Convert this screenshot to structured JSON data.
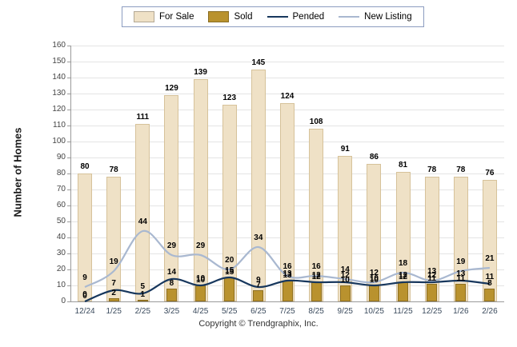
{
  "footer": "Copyright © Trendgraphix, Inc.",
  "chart_data": {
    "type": "bar",
    "subtype": "combo bar + line",
    "title": "",
    "ylabel": "Number of Homes",
    "xlabel": "",
    "ylim": [
      0,
      160
    ],
    "ytick_step": 10,
    "grid": true,
    "legend_position": "top",
    "categories": [
      "12/24",
      "1/25",
      "2/25",
      "3/25",
      "4/25",
      "5/25",
      "6/25",
      "7/25",
      "8/25",
      "9/25",
      "10/25",
      "11/25",
      "12/25",
      "1/26",
      "2/26"
    ],
    "series": [
      {
        "name": "For Sale",
        "type": "bar",
        "color": "#EFE1C6",
        "border": "#D6C29A",
        "values": [
          80,
          78,
          111,
          129,
          139,
          123,
          145,
          124,
          108,
          91,
          86,
          81,
          78,
          78,
          76
        ]
      },
      {
        "name": "Sold",
        "type": "bar",
        "color": "#B9922E",
        "border": "#8F7020",
        "values": [
          0,
          2,
          1,
          8,
          10,
          15,
          7,
          13,
          12,
          10,
          10,
          12,
          11,
          11,
          8
        ]
      },
      {
        "name": "Pended",
        "type": "line",
        "color": "#17375D",
        "values": [
          0,
          7,
          5,
          14,
          10,
          15,
          9,
          13,
          12,
          12,
          10,
          12,
          12,
          13,
          11
        ]
      },
      {
        "name": "New Listing",
        "type": "line",
        "color": "#A9B8D0",
        "values": [
          9,
          19,
          44,
          29,
          29,
          20,
          34,
          16,
          16,
          14,
          12,
          18,
          13,
          19,
          21
        ]
      }
    ]
  }
}
